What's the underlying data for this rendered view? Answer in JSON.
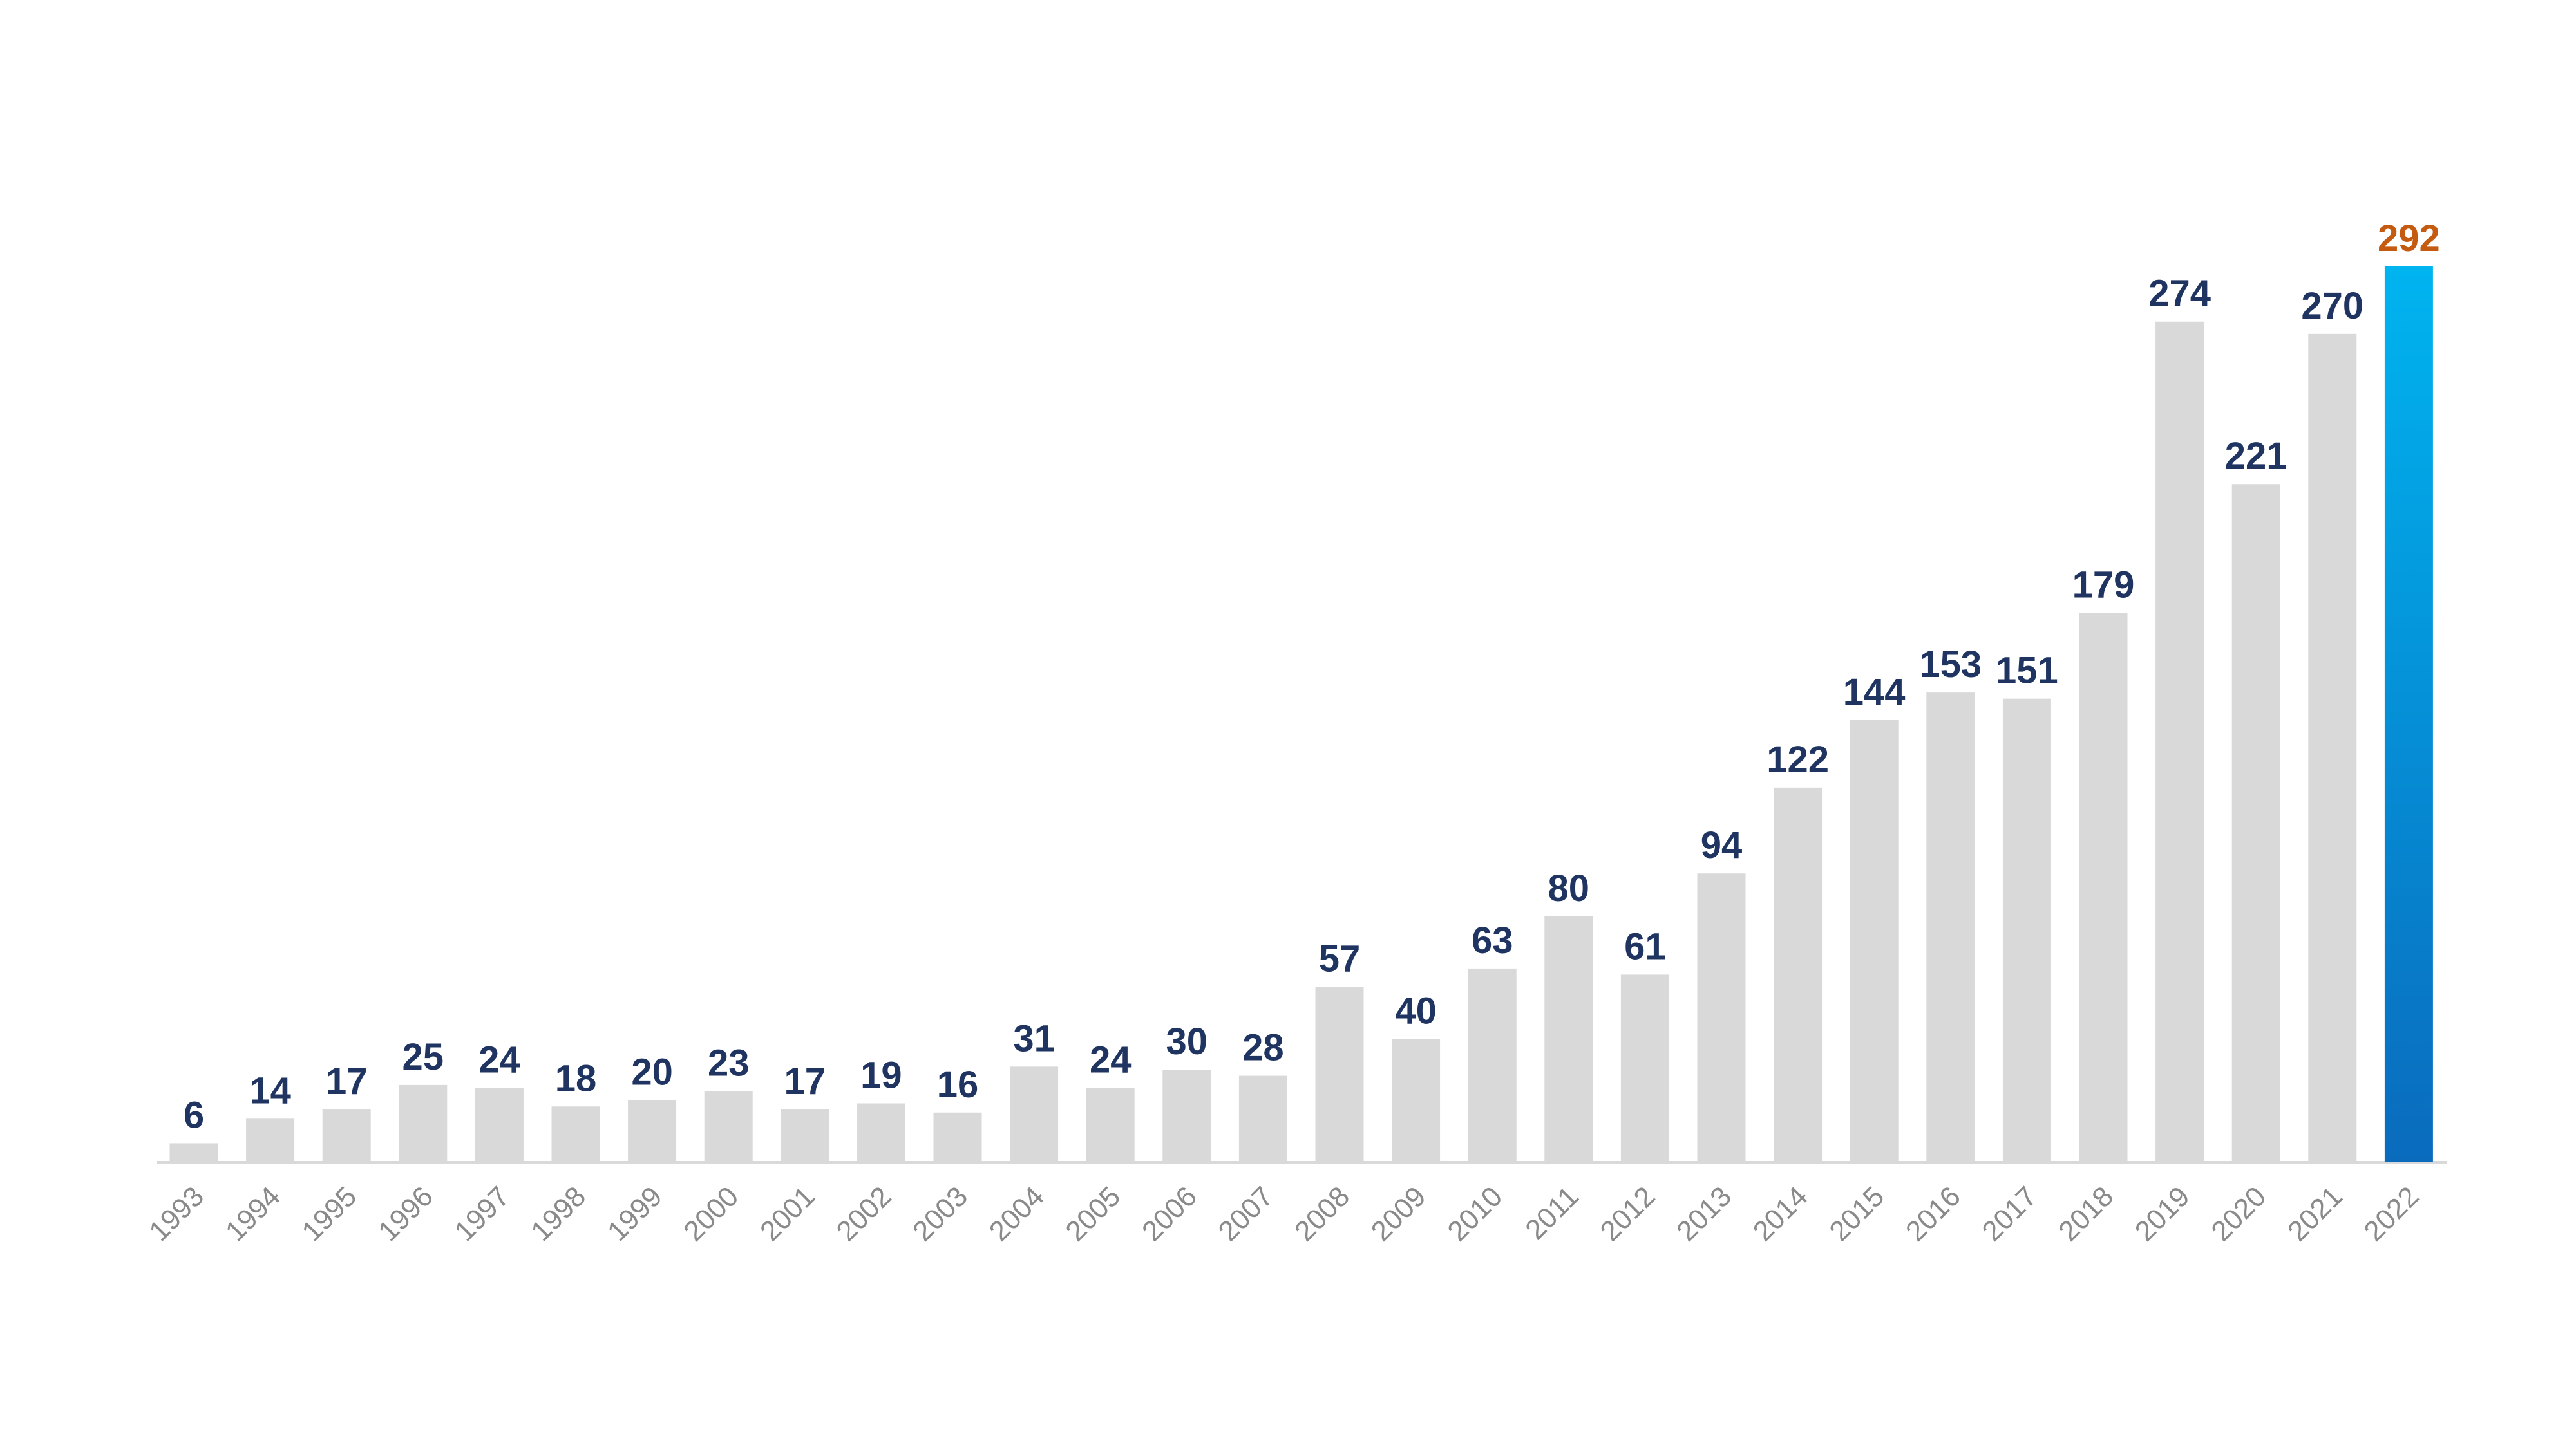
{
  "chart_data": {
    "type": "bar",
    "categories": [
      "1993",
      "1994",
      "1995",
      "1996",
      "1997",
      "1998",
      "1999",
      "2000",
      "2001",
      "2002",
      "2003",
      "2004",
      "2005",
      "2006",
      "2007",
      "2008",
      "2009",
      "2010",
      "2011",
      "2012",
      "2013",
      "2014",
      "2015",
      "2016",
      "2017",
      "2018",
      "2019",
      "2020",
      "2021",
      "2022"
    ],
    "values": [
      6,
      14,
      17,
      25,
      24,
      18,
      20,
      23,
      17,
      19,
      16,
      31,
      24,
      30,
      28,
      57,
      40,
      63,
      80,
      61,
      94,
      122,
      144,
      153,
      151,
      179,
      274,
      221,
      270,
      292
    ],
    "color": "#d9d9d9",
    "label_color": "#1f3461",
    "highlight": {
      "index": 29,
      "gradient": [
        "#00b4f0",
        "#0a6bbd"
      ],
      "label_color": "#c55a11"
    },
    "grid": false
  }
}
